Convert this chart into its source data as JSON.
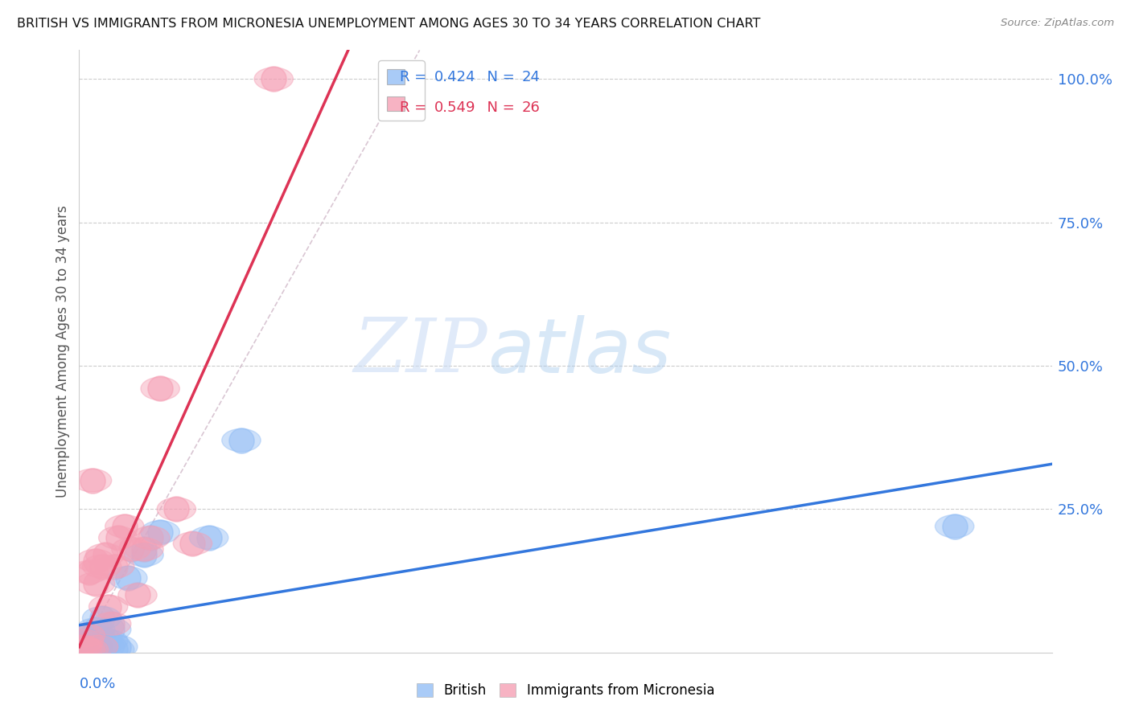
{
  "title": "BRITISH VS IMMIGRANTS FROM MICRONESIA UNEMPLOYMENT AMONG AGES 30 TO 34 YEARS CORRELATION CHART",
  "source": "Source: ZipAtlas.com",
  "ylabel": "Unemployment Among Ages 30 to 34 years",
  "watermark_zip": "ZIP",
  "watermark_atlas": "atlas",
  "british_x": [
    0.0005,
    0.001,
    0.0015,
    0.002,
    0.002,
    0.003,
    0.003,
    0.004,
    0.004,
    0.005,
    0.005,
    0.006,
    0.007,
    0.008,
    0.009,
    0.01,
    0.011,
    0.012,
    0.015,
    0.02,
    0.025,
    0.04,
    0.05,
    0.27
  ],
  "british_y": [
    0.005,
    0.01,
    0.005,
    0.01,
    0.02,
    0.005,
    0.02,
    0.01,
    0.03,
    0.005,
    0.04,
    0.02,
    0.06,
    0.01,
    0.02,
    0.04,
    0.005,
    0.01,
    0.13,
    0.17,
    0.21,
    0.2,
    0.37,
    0.22
  ],
  "micronesia_x": [
    0.0005,
    0.001,
    0.0015,
    0.002,
    0.002,
    0.003,
    0.003,
    0.004,
    0.005,
    0.005,
    0.006,
    0.007,
    0.008,
    0.009,
    0.01,
    0.011,
    0.012,
    0.014,
    0.016,
    0.018,
    0.02,
    0.022,
    0.025,
    0.03,
    0.035,
    0.06
  ],
  "micronesia_y": [
    0.01,
    0.01,
    0.02,
    0.005,
    0.03,
    0.005,
    0.14,
    0.3,
    0.12,
    0.16,
    0.01,
    0.15,
    0.17,
    0.08,
    0.05,
    0.15,
    0.2,
    0.22,
    0.18,
    0.1,
    0.18,
    0.2,
    0.46,
    0.25,
    0.19,
    1.0
  ],
  "british_color": "#94bef5",
  "micronesia_color": "#f5a0b5",
  "british_line_color": "#3377dd",
  "micronesia_line_color": "#dd3355",
  "diagonal_color": "#d0b8c8",
  "xmin": 0.0,
  "xmax": 0.3,
  "ymin": 0.0,
  "ymax": 1.05,
  "right_yticks": [
    0.25,
    0.5,
    0.75,
    1.0
  ],
  "right_yticklabels": [
    "25.0%",
    "50.0%",
    "75.0%",
    "100.0%"
  ]
}
